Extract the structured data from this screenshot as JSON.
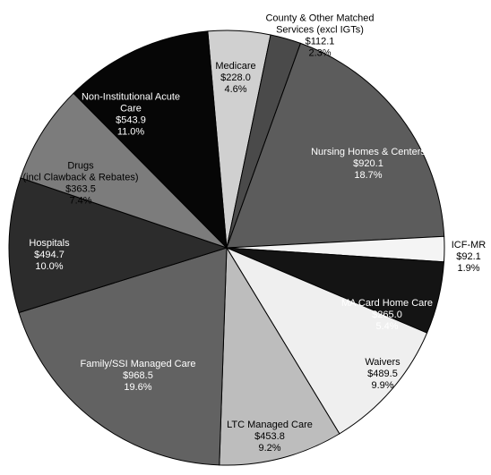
{
  "chart_data": {
    "type": "pie",
    "categories": [
      "Medicare",
      "County & Other Matched Services (excl IGTs)",
      "Nursing Homes & Centers",
      "ICF-MR",
      "MA Card Home Care",
      "Waivers",
      "LTC Managed Care",
      "Family/SSI Managed Care",
      "Hospitals",
      "Drugs (incl Clawback & Rebates)",
      "Non-Institutional Acute Care"
    ],
    "values": [
      228.0,
      112.1,
      920.1,
      92.1,
      265.0,
      489.5,
      453.8,
      968.5,
      494.7,
      363.5,
      543.9
    ],
    "value_labels": [
      "$228.0",
      "$112.1",
      "$920.1",
      "$92.1",
      "$265.0",
      "$489.5",
      "$453.8",
      "$968.5",
      "$494.7",
      "$363.5",
      "$543.9"
    ],
    "percent_labels": [
      "4.6%",
      "2.3%",
      "18.7%",
      "1.9%",
      "5.4%",
      "9.9%",
      "9.2%",
      "19.6%",
      "10.0%",
      "7.4%",
      "11.0%"
    ],
    "colors": [
      "#d0d0d0",
      "#4a4a4a",
      "#5c5c5c",
      "#f4f4f4",
      "#141414",
      "#efefef",
      "#bdbdbd",
      "#626262",
      "#2c2c2c",
      "#7c7c7c",
      "#060606"
    ]
  }
}
